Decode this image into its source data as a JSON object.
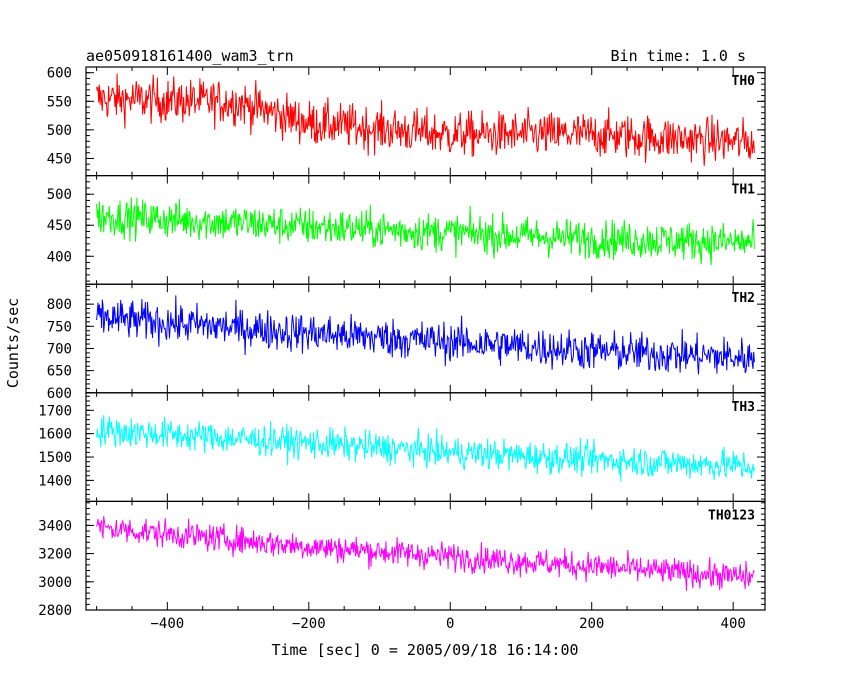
{
  "header": {
    "title": "ae050918161400_wam3_trn",
    "bin_time": "Bin time: 1.0 s"
  },
  "chart_data": {
    "type": "line",
    "xlabel": "Time [sec] 0 = 2005/09/18 16:14:00",
    "ylabel": "Counts/sec",
    "xlim": [
      -515,
      445
    ],
    "x_range": [
      -500,
      430
    ],
    "x_ticks": [
      -400,
      -200,
      0,
      200,
      400
    ],
    "x_tick_labels": [
      "−400",
      "−200",
      "0",
      "200",
      "400"
    ],
    "panels": [
      {
        "name": "TH0",
        "color": "#ff0000",
        "ylim": [
          420,
          610
        ],
        "y_ticks": [
          450,
          500,
          550,
          600
        ],
        "y_tick_labels": [
          "450",
          "500",
          "550",
          "600"
        ],
        "trend": [
          [
            -500,
            555
          ],
          [
            -300,
            548
          ],
          [
            -200,
            512
          ],
          [
            0,
            492
          ],
          [
            200,
            492
          ],
          [
            430,
            478
          ]
        ],
        "noise": 28
      },
      {
        "name": "TH1",
        "color": "#00ff00",
        "ylim": [
          355,
          530
        ],
        "y_ticks": [
          400,
          450,
          500
        ],
        "y_tick_labels": [
          "400",
          "450",
          "500"
        ],
        "trend": [
          [
            -500,
            465
          ],
          [
            -200,
            448
          ],
          [
            0,
            438
          ],
          [
            200,
            428
          ],
          [
            430,
            422
          ]
        ],
        "noise": 22
      },
      {
        "name": "TH2",
        "color": "#0000ff",
        "ylim": [
          600,
          845
        ],
        "y_ticks": [
          600,
          650,
          700,
          750,
          800
        ],
        "y_tick_labels": [
          "600",
          "650",
          "700",
          "750",
          "800"
        ],
        "trend": [
          [
            -500,
            770
          ],
          [
            -200,
            735
          ],
          [
            0,
            715
          ],
          [
            200,
            695
          ],
          [
            430,
            678
          ]
        ],
        "noise": 32
      },
      {
        "name": "TH3",
        "color": "#00ffff",
        "ylim": [
          1310,
          1775
        ],
        "y_ticks": [
          1400,
          1500,
          1600,
          1700
        ],
        "y_tick_labels": [
          "1400",
          "1500",
          "1600",
          "1700"
        ],
        "trend": [
          [
            -500,
            1615
          ],
          [
            -200,
            1560
          ],
          [
            0,
            1520
          ],
          [
            200,
            1490
          ],
          [
            430,
            1460
          ]
        ],
        "noise": 48
      },
      {
        "name": "TH0123",
        "color": "#ff00ff",
        "ylim": [
          2800,
          3570
        ],
        "y_ticks": [
          2800,
          3000,
          3200,
          3400
        ],
        "y_tick_labels": [
          "2800",
          "3000",
          "3200",
          "3400"
        ],
        "trend": [
          [
            -500,
            3385
          ],
          [
            -200,
            3250
          ],
          [
            0,
            3180
          ],
          [
            200,
            3110
          ],
          [
            430,
            3030
          ]
        ],
        "noise": 70
      }
    ]
  }
}
